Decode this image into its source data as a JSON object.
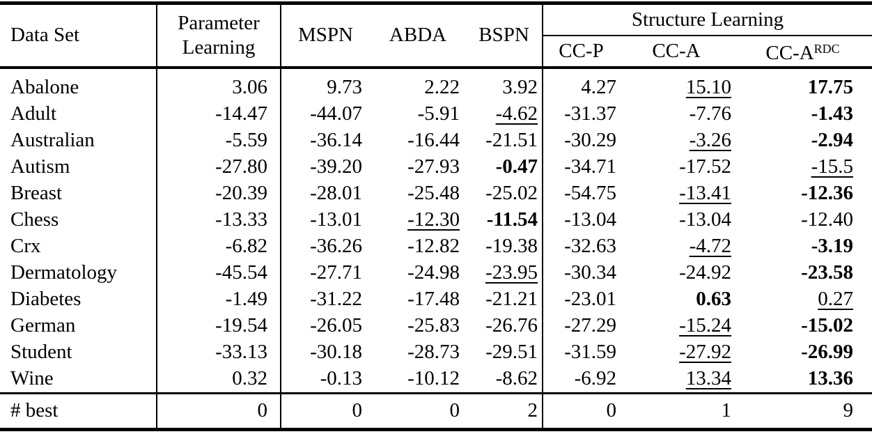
{
  "colors": {
    "text": "#000000",
    "background": "#ffffff",
    "rules": "#000000"
  },
  "table": {
    "header": {
      "dataset": "Data Set",
      "param_learning_line1": "Parameter",
      "param_learning_line2": "Learning",
      "mspn": "MSPN",
      "abda": "ABDA",
      "bspn": "BSPN",
      "structure_learning": "Structure Learning",
      "ccp": "CC-P",
      "cca": "CC-A",
      "ccardc_base": "CC-A",
      "ccardc_sup": "RDC"
    },
    "columns": [
      "Parameter Learning",
      "MSPN",
      "ABDA",
      "BSPN",
      "CC-P",
      "CC-A",
      "CC-A-RDC"
    ],
    "rows": [
      {
        "name": "Abalone",
        "values": [
          "3.06",
          "9.73",
          "2.22",
          "3.92",
          "4.27",
          "15.10",
          "17.75"
        ],
        "underline": 5,
        "bold": 6
      },
      {
        "name": "Adult",
        "values": [
          "-14.47",
          "-44.07",
          "-5.91",
          "-4.62",
          "-31.37",
          "-7.76",
          "-1.43"
        ],
        "underline": 3,
        "bold": 6
      },
      {
        "name": "Australian",
        "values": [
          "-5.59",
          "-36.14",
          "-16.44",
          "-21.51",
          "-30.29",
          "-3.26",
          "-2.94"
        ],
        "underline": 5,
        "bold": 6
      },
      {
        "name": "Autism",
        "values": [
          "-27.80",
          "-39.20",
          "-27.93",
          "-0.47",
          "-34.71",
          "-17.52",
          "-15.5"
        ],
        "underline": 6,
        "bold": 3
      },
      {
        "name": "Breast",
        "values": [
          "-20.39",
          "-28.01",
          "-25.48",
          "-25.02",
          "-54.75",
          "-13.41",
          "-12.36"
        ],
        "underline": 5,
        "bold": 6
      },
      {
        "name": "Chess",
        "values": [
          "-13.33",
          "-13.01",
          "-12.30",
          "-11.54",
          "-13.04",
          "-13.04",
          "-12.40"
        ],
        "underline": 2,
        "bold": 3
      },
      {
        "name": "Crx",
        "values": [
          "-6.82",
          "-36.26",
          "-12.82",
          "-19.38",
          "-32.63",
          "-4.72",
          "-3.19"
        ],
        "underline": 5,
        "bold": 6
      },
      {
        "name": "Dermatology",
        "values": [
          "-45.54",
          "-27.71",
          "-24.98",
          "-23.95",
          "-30.34",
          "-24.92",
          "-23.58"
        ],
        "underline": 3,
        "bold": 6
      },
      {
        "name": "Diabetes",
        "values": [
          "-1.49",
          "-31.22",
          "-17.48",
          "-21.21",
          "-23.01",
          "0.63",
          "0.27"
        ],
        "underline": 6,
        "bold": 5
      },
      {
        "name": "German",
        "values": [
          "-19.54",
          "-26.05",
          "-25.83",
          "-26.76",
          "-27.29",
          "-15.24",
          "-15.02"
        ],
        "underline": 5,
        "bold": 6
      },
      {
        "name": "Student",
        "values": [
          "-33.13",
          "-30.18",
          "-28.73",
          "-29.51",
          "-31.59",
          "-27.92",
          "-26.99"
        ],
        "underline": 5,
        "bold": 6
      },
      {
        "name": "Wine",
        "values": [
          "0.32",
          "-0.13",
          "-10.12",
          "-8.62",
          "-6.92",
          "13.34",
          "13.36"
        ],
        "underline": 5,
        "bold": 6
      }
    ],
    "footer": {
      "label": "# best",
      "values": [
        "0",
        "0",
        "0",
        "2",
        "0",
        "1",
        "9"
      ]
    }
  }
}
